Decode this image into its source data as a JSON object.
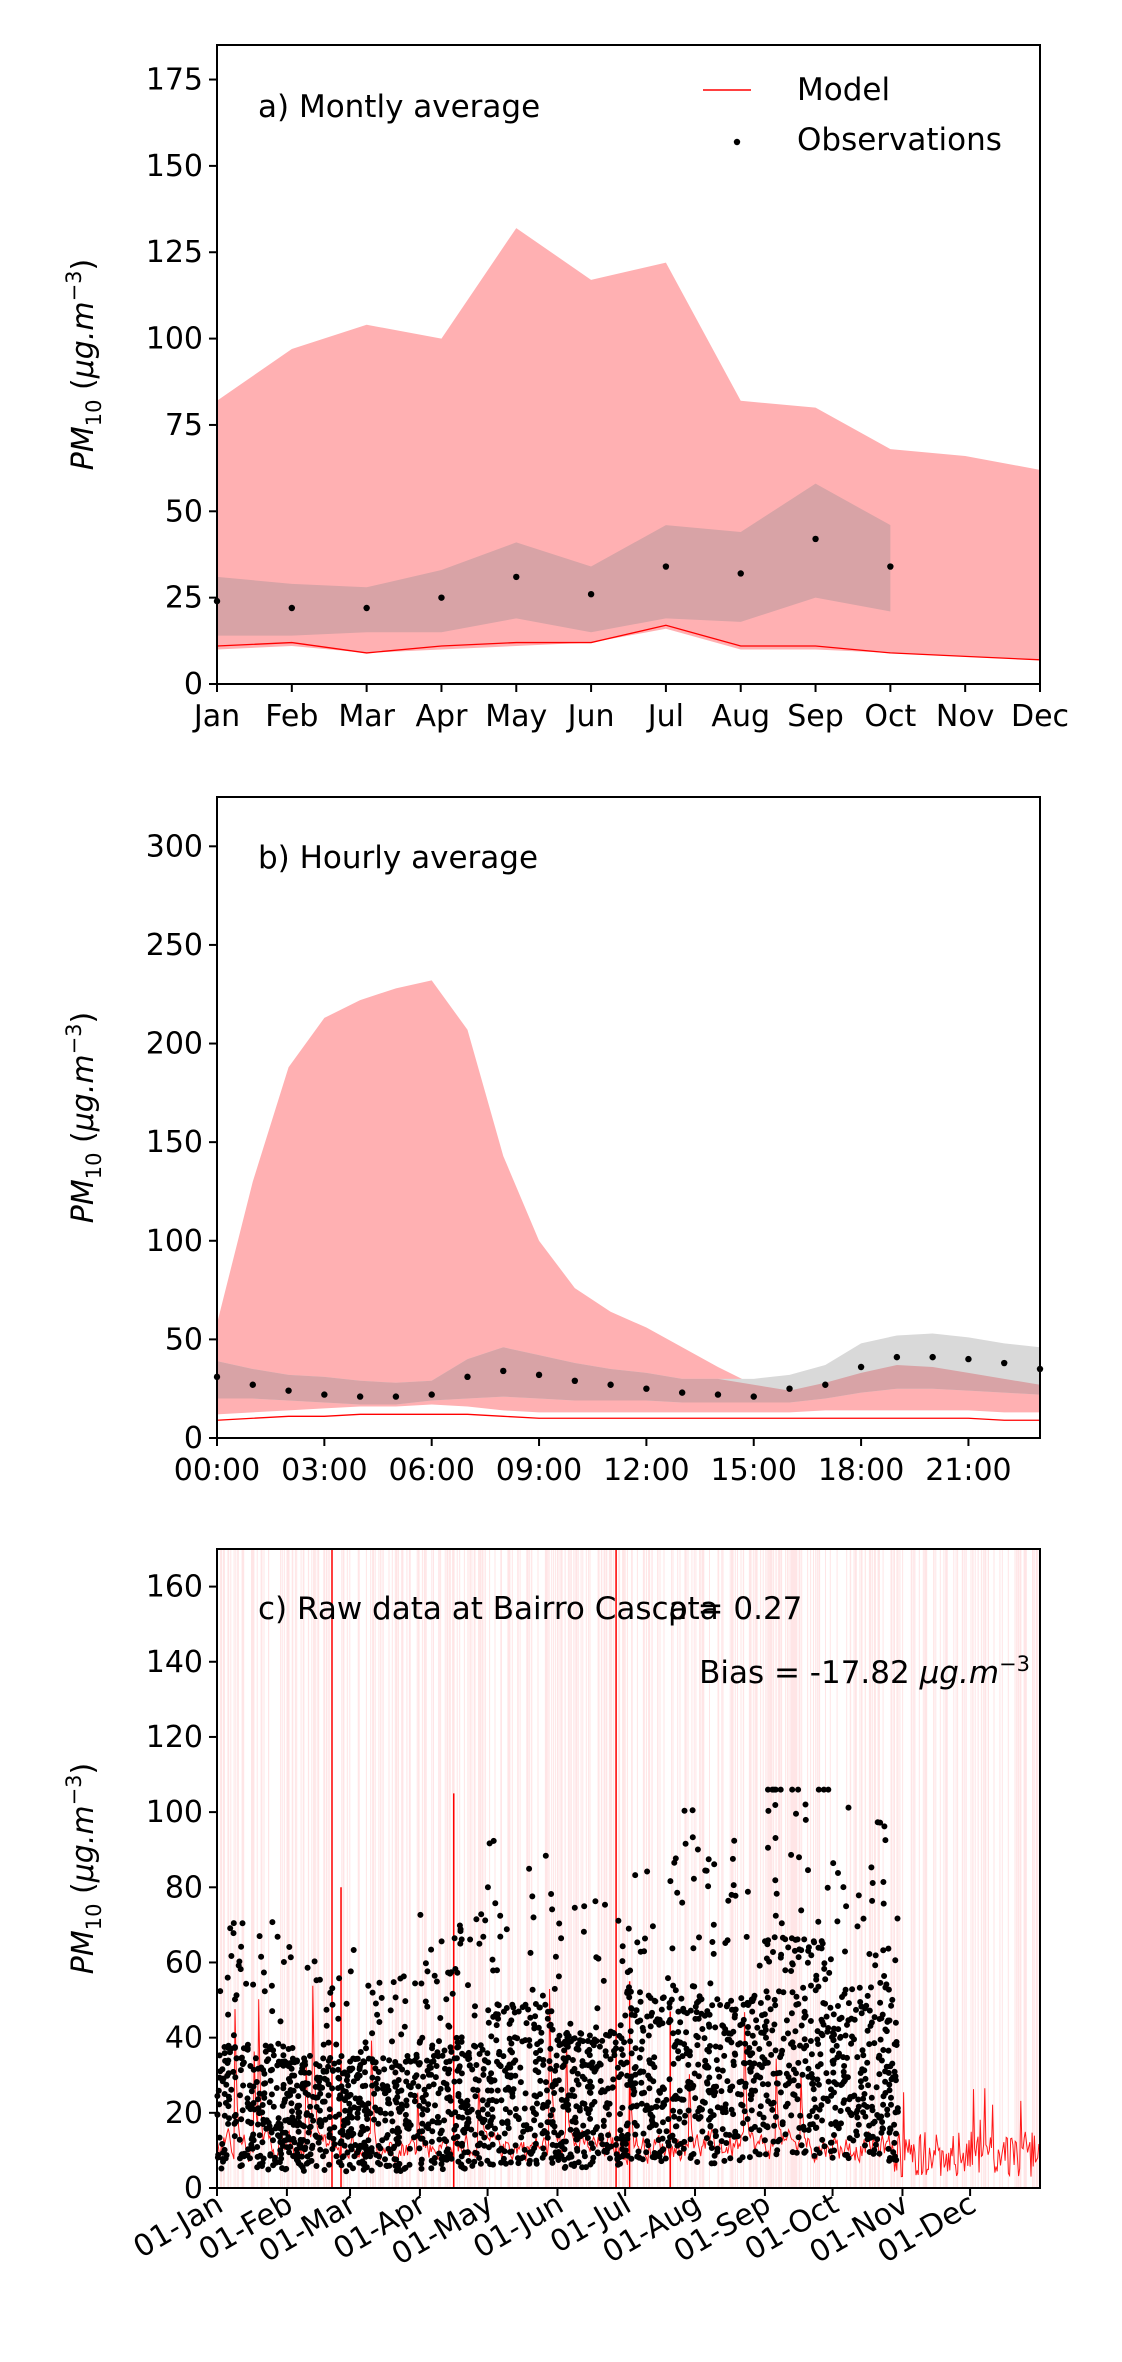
{
  "chart_data": [
    {
      "type": "area",
      "annotation": "a) Montly average",
      "ylabel": "PM10 (μg.m−3)",
      "ylim": [
        0,
        185
      ],
      "yticks": [
        0,
        25,
        50,
        75,
        100,
        125,
        150,
        175
      ],
      "categories": [
        "Jan",
        "Feb",
        "Mar",
        "Apr",
        "May",
        "Jun",
        "Jul",
        "Aug",
        "Sep",
        "Oct",
        "Nov",
        "Dec"
      ],
      "legend": {
        "placement": "top-right",
        "entries": [
          {
            "label": "Model",
            "kind": "line",
            "color": "#ff0000"
          },
          {
            "label": "Observations",
            "kind": "dot",
            "color": "#000000"
          }
        ]
      },
      "model_band": {
        "color": "#ffb0b2",
        "lower": [
          10,
          11,
          9,
          10,
          11,
          12,
          16,
          10,
          10,
          9,
          8,
          7
        ],
        "upper": [
          82,
          97,
          104,
          100,
          132,
          117,
          122,
          82,
          80,
          68,
          66,
          62
        ]
      },
      "model_line": {
        "color": "#ff0000",
        "values": [
          11,
          12,
          9,
          11,
          12,
          12,
          17,
          11,
          11,
          9,
          8,
          7
        ]
      },
      "obs_band": {
        "color": "#d8a3a6",
        "lower": [
          14,
          14,
          15,
          15,
          19,
          15,
          19,
          18,
          25,
          21,
          null,
          null
        ],
        "upper": [
          31,
          29,
          28,
          33,
          41,
          34,
          46,
          44,
          58,
          46,
          null,
          null
        ]
      },
      "observations": [
        24,
        22,
        22,
        25,
        31,
        26,
        34,
        32,
        42,
        34,
        null,
        null
      ]
    },
    {
      "type": "area",
      "annotation": "b) Hourly average",
      "ylabel": "PM10 (μg.m−3)",
      "ylim": [
        0,
        325
      ],
      "yticks": [
        0,
        50,
        100,
        150,
        200,
        250,
        300
      ],
      "x": [
        0,
        1,
        2,
        3,
        4,
        5,
        6,
        7,
        8,
        9,
        10,
        11,
        12,
        13,
        14,
        15,
        16,
        17,
        18,
        19,
        20,
        21,
        22,
        23
      ],
      "xticks": [
        0,
        3,
        6,
        9,
        12,
        15,
        18,
        21
      ],
      "xtick_labels": [
        "00:00",
        "03:00",
        "06:00",
        "09:00",
        "12:00",
        "15:00",
        "18:00",
        "21:00"
      ],
      "model_band": {
        "color": "#ffb0b2",
        "lower": [
          12,
          13,
          14,
          15,
          16,
          16,
          17,
          16,
          14,
          13,
          13,
          13,
          13,
          13,
          13,
          13,
          13,
          14,
          14,
          14,
          14,
          14,
          13,
          13
        ],
        "upper": [
          58,
          130,
          188,
          213,
          222,
          228,
          232,
          207,
          143,
          100,
          76,
          64,
          56,
          46,
          36,
          27,
          24,
          28,
          33,
          37,
          36,
          33,
          30,
          27
        ]
      },
      "model_line": {
        "color": "#ff0000",
        "values": [
          9,
          10,
          11,
          11,
          12,
          12,
          12,
          12,
          11,
          10,
          10,
          10,
          10,
          10,
          10,
          10,
          10,
          10,
          10,
          10,
          10,
          10,
          9,
          9
        ]
      },
      "obs_band": {
        "color": "#d9d9d9",
        "lower": [
          20,
          20,
          19,
          18,
          17,
          17,
          19,
          20,
          21,
          20,
          19,
          19,
          19,
          18,
          18,
          18,
          18,
          20,
          23,
          25,
          25,
          24,
          23,
          22
        ],
        "upper": [
          39,
          35,
          32,
          31,
          29,
          28,
          29,
          40,
          46,
          42,
          38,
          35,
          33,
          30,
          30,
          30,
          32,
          37,
          48,
          52,
          53,
          51,
          48,
          46
        ]
      },
      "observations": [
        31,
        27,
        24,
        22,
        21,
        21,
        22,
        31,
        34,
        32,
        29,
        27,
        25,
        23,
        22,
        21,
        25,
        27,
        36,
        41,
        41,
        40,
        38,
        35
      ]
    },
    {
      "type": "line",
      "annotation": "c) Raw data at Bairro Cascata",
      "stats": {
        "r": "ρ = 0.27",
        "bias": "Bias = -17.82"
      },
      "bias_unit": "μg.m−3",
      "ylabel": "PM10 (μg.m−3)",
      "ylim": [
        0,
        170
      ],
      "yticks": [
        0,
        20,
        40,
        60,
        80,
        100,
        120,
        140,
        160
      ],
      "xlim": [
        0,
        365
      ],
      "xticks": [
        0,
        31,
        59,
        90,
        120,
        151,
        181,
        212,
        243,
        273,
        304,
        334
      ],
      "xtick_labels": [
        "01-Jan",
        "01-Feb",
        "01-Mar",
        "01-Apr",
        "01-May",
        "01-Jun",
        "01-Jul",
        "01-Aug",
        "01-Sep",
        "01-Oct",
        "01-Nov",
        "01-Dec"
      ],
      "model_color": "#ff0000",
      "obs_color": "#000000",
      "obs_end_day": 302
    }
  ]
}
